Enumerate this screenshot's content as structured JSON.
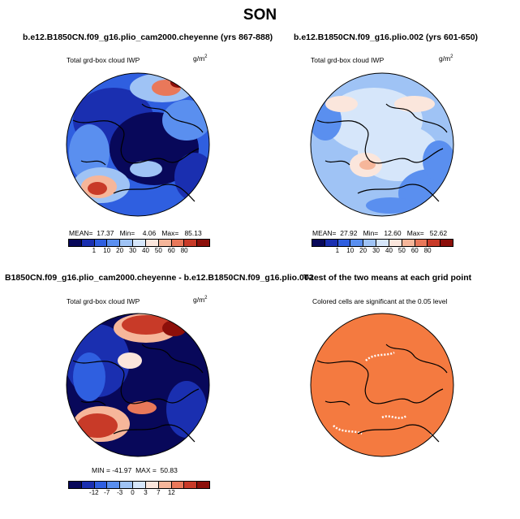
{
  "title": "SON",
  "panels": [
    {
      "id": "top-left",
      "heading": "b.e12.B1850CN.f09_g16.plio_cam2000.cheyenne (yrs 867-888)",
      "variable": "Total grd-box cloud IWP",
      "units": "g/m",
      "units_sup": "2",
      "stats": "MEAN=  17.37   Min=    4.06   Max=   85.13"
    },
    {
      "id": "top-right",
      "heading": "b.e12.B1850CN.f09_g16.plio.002 (yrs 601-650)",
      "variable": "Total grd-box cloud IWP",
      "units": "g/m",
      "units_sup": "2",
      "stats": "MEAN=  27.92   Min=   12.60   Max=   52.62"
    },
    {
      "id": "bottom-left",
      "heading": "B1850CN.f09_g16.plio_cam2000.cheyenne - b.e12.B1850CN.f09_g16.plio.002",
      "variable": "Total grd-box cloud IWP",
      "units": "g/m",
      "units_sup": "2",
      "stats": "MIN = -41.97  MAX =  50.83"
    },
    {
      "id": "bottom-right",
      "heading": "T-test of the two means at each grid point",
      "variable": "Colored cells are significant at the 0.05 level"
    }
  ],
  "colorbar_abs": {
    "colors": [
      "#08085a",
      "#1a2fb0",
      "#2f5fe0",
      "#5a8fef",
      "#9fc3f5",
      "#d6e6fa",
      "#fbe6dc",
      "#f6b69a",
      "#e9785a",
      "#c83a28",
      "#8c0f0a"
    ],
    "tick_labels": [
      "1",
      "10",
      "20",
      "30",
      "40",
      "50",
      "60",
      "80"
    ]
  },
  "colorbar_diff": {
    "colors": [
      "#08085a",
      "#1a2fb0",
      "#2f5fe0",
      "#5a8fef",
      "#9fc3f5",
      "#d6e6fa",
      "#fbe6dc",
      "#f6b69a",
      "#e9785a",
      "#c83a28",
      "#8c0f0a"
    ],
    "tick_labels": [
      "-12",
      "-7",
      "-3",
      "0",
      "3",
      "7",
      "12"
    ]
  },
  "ttest_color": "#f47a40"
}
